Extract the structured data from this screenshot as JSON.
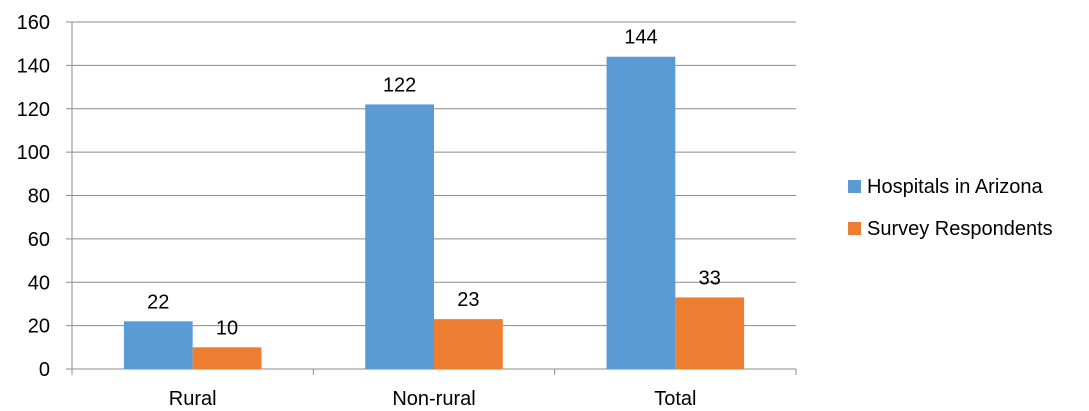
{
  "chart_data": {
    "type": "bar",
    "categories": [
      "Rural",
      "Non-rural",
      "Total"
    ],
    "series": [
      {
        "name": "Hospitals in Arizona",
        "values": [
          22,
          122,
          144
        ],
        "color": "#5b9bd5"
      },
      {
        "name": "Survey Respondents",
        "values": [
          10,
          23,
          33
        ],
        "color": "#ed7d31"
      }
    ],
    "ylim": [
      0,
      160
    ],
    "yticks": [
      0,
      20,
      40,
      60,
      80,
      100,
      120,
      140,
      160
    ],
    "grid": true,
    "gridlines": "horizontal",
    "legend": "right",
    "data_labels": true,
    "title": "",
    "xlabel": "",
    "ylabel": ""
  }
}
